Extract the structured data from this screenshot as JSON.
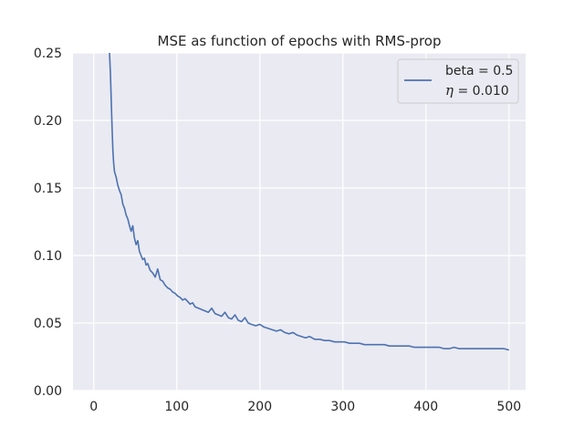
{
  "chart_data": {
    "type": "line",
    "title": "MSE as function of epochs with RMS-prop",
    "xlabel": "",
    "ylabel": "",
    "xlim": [
      -25,
      520
    ],
    "ylim": [
      0,
      0.25
    ],
    "x_ticks": [
      0,
      100,
      200,
      300,
      400,
      500
    ],
    "x_tick_labels": [
      "0",
      "100",
      "200",
      "300",
      "400",
      "500"
    ],
    "y_ticks": [
      0,
      0.05,
      0.1,
      0.15,
      0.2,
      0.25
    ],
    "y_tick_labels": [
      "0.00",
      "0.05",
      "0.10",
      "0.15",
      "0.20",
      "0.25"
    ],
    "grid": true,
    "legend_position": "top-right",
    "background_color": "#eaeaf2",
    "line_color": "#4c72b0",
    "series": [
      {
        "name": "beta = 0.5",
        "label_line2_symbol": "η",
        "label_line2_value": " = 0.010",
        "x": [
          19,
          20,
          21,
          22,
          23,
          24,
          25,
          27,
          29,
          31,
          33,
          35,
          37,
          39,
          41,
          43,
          45,
          47,
          49,
          51,
          53,
          55,
          57,
          59,
          61,
          63,
          65,
          68,
          71,
          74,
          77,
          80,
          83,
          86,
          89,
          92,
          95,
          98,
          101,
          104,
          107,
          110,
          113,
          116,
          119,
          122,
          126,
          130,
          134,
          138,
          142,
          146,
          150,
          154,
          158,
          162,
          166,
          170,
          174,
          178,
          182,
          186,
          190,
          195,
          200,
          205,
          210,
          215,
          220,
          225,
          230,
          235,
          240,
          245,
          250,
          255,
          260,
          266,
          272,
          278,
          284,
          290,
          296,
          302,
          308,
          314,
          320,
          326,
          332,
          338,
          344,
          350,
          356,
          362,
          368,
          374,
          380,
          386,
          392,
          398,
          404,
          410,
          416,
          422,
          428,
          434,
          440,
          446,
          452,
          458,
          464,
          470,
          476,
          482,
          488,
          494,
          500
        ],
        "values": [
          0.25,
          0.235,
          0.215,
          0.195,
          0.178,
          0.168,
          0.162,
          0.158,
          0.152,
          0.148,
          0.145,
          0.138,
          0.135,
          0.13,
          0.127,
          0.122,
          0.118,
          0.122,
          0.113,
          0.108,
          0.111,
          0.103,
          0.1,
          0.097,
          0.098,
          0.093,
          0.094,
          0.089,
          0.087,
          0.084,
          0.09,
          0.082,
          0.081,
          0.078,
          0.076,
          0.075,
          0.073,
          0.072,
          0.07,
          0.069,
          0.067,
          0.068,
          0.066,
          0.064,
          0.065,
          0.062,
          0.061,
          0.06,
          0.059,
          0.058,
          0.061,
          0.057,
          0.056,
          0.055,
          0.058,
          0.054,
          0.053,
          0.056,
          0.052,
          0.051,
          0.054,
          0.05,
          0.049,
          0.048,
          0.049,
          0.047,
          0.046,
          0.045,
          0.044,
          0.045,
          0.043,
          0.042,
          0.043,
          0.041,
          0.04,
          0.039,
          0.04,
          0.038,
          0.038,
          0.037,
          0.037,
          0.036,
          0.036,
          0.036,
          0.035,
          0.035,
          0.035,
          0.034,
          0.034,
          0.034,
          0.034,
          0.034,
          0.033,
          0.033,
          0.033,
          0.033,
          0.033,
          0.032,
          0.032,
          0.032,
          0.032,
          0.032,
          0.032,
          0.031,
          0.031,
          0.032,
          0.031,
          0.031,
          0.031,
          0.031,
          0.031,
          0.031,
          0.031,
          0.031,
          0.031,
          0.031,
          0.03
        ]
      }
    ]
  }
}
